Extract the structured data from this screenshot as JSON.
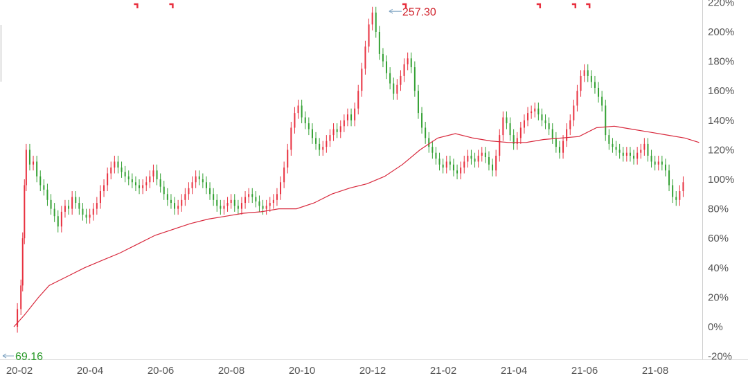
{
  "chart_data": {
    "type": "candlestick",
    "title": "",
    "xlabel": "",
    "ylabel": "",
    "y_axis_position": "right",
    "y_ticks": [
      "220%",
      "200%",
      "180%",
      "160%",
      "140%",
      "120%",
      "100%",
      "80%",
      "60%",
      "40%",
      "20%",
      "0%",
      "-20%"
    ],
    "y_tick_values": [
      220,
      200,
      180,
      160,
      140,
      120,
      100,
      80,
      60,
      40,
      20,
      0,
      -20
    ],
    "x_ticks": [
      "20-02",
      "20-04",
      "20-06",
      "20-08",
      "20-10",
      "20-12",
      "21-02",
      "21-04",
      "21-06",
      "21-08"
    ],
    "x_tick_months": [
      0,
      2,
      4,
      6,
      8,
      10,
      12,
      14,
      16,
      18
    ],
    "ylim": [
      -20,
      220
    ],
    "xlim_months": [
      0,
      19.4
    ],
    "colors": {
      "up": "#e8303f",
      "down": "#32a032",
      "ma_line": "#d8283c",
      "grid_text": "#555555",
      "max_label": "#d0202a",
      "min_label": "#2a9a2a"
    },
    "max_annotation": {
      "label": "257.30",
      "month": 10.9,
      "value": 213
    },
    "min_annotation": {
      "label": "69.16",
      "month": 0.0,
      "value": -16
    },
    "event_marker_months": [
      3.4,
      4.4,
      11.0,
      14.8,
      15.8,
      16.2
    ],
    "moving_average": {
      "month": [
        0,
        0.3,
        0.7,
        1,
        1.5,
        2,
        2.5,
        3,
        3.5,
        4,
        4.5,
        5,
        5.5,
        6,
        6.5,
        7,
        7.5,
        8,
        8.5,
        9,
        9.5,
        10,
        10.5,
        11,
        11.5,
        12,
        12.5,
        13,
        13.5,
        14,
        14.5,
        15,
        15.5,
        16,
        16.5,
        17,
        17.5,
        18,
        18.5,
        19,
        19.4
      ],
      "value": [
        0,
        8,
        20,
        28,
        34,
        40,
        45,
        50,
        56,
        62,
        66,
        70,
        73,
        75,
        77,
        78,
        80,
        80,
        84,
        90,
        94,
        97,
        102,
        110,
        120,
        128,
        131,
        128,
        126,
        125,
        125,
        127,
        128,
        129,
        135,
        136,
        134,
        132,
        130,
        128,
        125
      ]
    },
    "candles_close": [
      [
        0.0,
        0
      ],
      [
        0.1,
        12
      ],
      [
        0.2,
        28
      ],
      [
        0.25,
        60
      ],
      [
        0.3,
        96
      ],
      [
        0.35,
        120
      ],
      [
        0.45,
        110
      ],
      [
        0.55,
        112
      ],
      [
        0.65,
        102
      ],
      [
        0.75,
        96
      ],
      [
        0.85,
        93
      ],
      [
        0.95,
        86
      ],
      [
        1.05,
        80
      ],
      [
        1.15,
        75
      ],
      [
        1.25,
        68
      ],
      [
        1.35,
        78
      ],
      [
        1.45,
        82
      ],
      [
        1.55,
        80
      ],
      [
        1.65,
        88
      ],
      [
        1.75,
        84
      ],
      [
        1.85,
        80
      ],
      [
        1.95,
        76
      ],
      [
        2.05,
        74
      ],
      [
        2.15,
        76
      ],
      [
        2.25,
        80
      ],
      [
        2.35,
        84
      ],
      [
        2.45,
        92
      ],
      [
        2.55,
        96
      ],
      [
        2.65,
        104
      ],
      [
        2.75,
        108
      ],
      [
        2.85,
        112
      ],
      [
        2.95,
        108
      ],
      [
        3.05,
        105
      ],
      [
        3.15,
        102
      ],
      [
        3.25,
        100
      ],
      [
        3.35,
        98
      ],
      [
        3.45,
        96
      ],
      [
        3.55,
        94
      ],
      [
        3.65,
        96
      ],
      [
        3.75,
        98
      ],
      [
        3.85,
        102
      ],
      [
        3.95,
        106
      ],
      [
        4.05,
        100
      ],
      [
        4.15,
        95
      ],
      [
        4.25,
        90
      ],
      [
        4.35,
        86
      ],
      [
        4.45,
        84
      ],
      [
        4.55,
        80
      ],
      [
        4.65,
        82
      ],
      [
        4.75,
        86
      ],
      [
        4.85,
        90
      ],
      [
        4.95,
        94
      ],
      [
        5.05,
        98
      ],
      [
        5.15,
        102
      ],
      [
        5.25,
        100
      ],
      [
        5.35,
        98
      ],
      [
        5.45,
        94
      ],
      [
        5.55,
        90
      ],
      [
        5.65,
        86
      ],
      [
        5.75,
        82
      ],
      [
        5.85,
        80
      ],
      [
        5.95,
        82
      ],
      [
        6.05,
        84
      ],
      [
        6.15,
        86
      ],
      [
        6.25,
        82
      ],
      [
        6.35,
        80
      ],
      [
        6.45,
        84
      ],
      [
        6.55,
        88
      ],
      [
        6.65,
        90
      ],
      [
        6.75,
        88
      ],
      [
        6.85,
        85
      ],
      [
        6.95,
        82
      ],
      [
        7.05,
        80
      ],
      [
        7.15,
        82
      ],
      [
        7.25,
        84
      ],
      [
        7.35,
        86
      ],
      [
        7.45,
        90
      ],
      [
        7.55,
        98
      ],
      [
        7.65,
        108
      ],
      [
        7.75,
        120
      ],
      [
        7.85,
        135
      ],
      [
        7.95,
        145
      ],
      [
        8.05,
        150
      ],
      [
        8.15,
        142
      ],
      [
        8.25,
        138
      ],
      [
        8.35,
        134
      ],
      [
        8.45,
        128
      ],
      [
        8.55,
        124
      ],
      [
        8.65,
        120
      ],
      [
        8.75,
        122
      ],
      [
        8.85,
        126
      ],
      [
        8.95,
        130
      ],
      [
        9.05,
        134
      ],
      [
        9.15,
        132
      ],
      [
        9.25,
        136
      ],
      [
        9.35,
        140
      ],
      [
        9.45,
        144
      ],
      [
        9.55,
        140
      ],
      [
        9.65,
        148
      ],
      [
        9.75,
        160
      ],
      [
        9.85,
        175
      ],
      [
        9.95,
        190
      ],
      [
        10.05,
        205
      ],
      [
        10.15,
        213
      ],
      [
        10.25,
        200
      ],
      [
        10.35,
        185
      ],
      [
        10.45,
        180
      ],
      [
        10.55,
        172
      ],
      [
        10.65,
        165
      ],
      [
        10.75,
        158
      ],
      [
        10.85,
        164
      ],
      [
        10.95,
        170
      ],
      [
        11.05,
        178
      ],
      [
        11.15,
        182
      ],
      [
        11.25,
        176
      ],
      [
        11.35,
        160
      ],
      [
        11.45,
        145
      ],
      [
        11.55,
        135
      ],
      [
        11.65,
        128
      ],
      [
        11.75,
        122
      ],
      [
        11.85,
        118
      ],
      [
        11.95,
        114
      ],
      [
        12.05,
        110
      ],
      [
        12.15,
        108
      ],
      [
        12.25,
        112
      ],
      [
        12.35,
        110
      ],
      [
        12.45,
        106
      ],
      [
        12.55,
        104
      ],
      [
        12.65,
        108
      ],
      [
        12.75,
        112
      ],
      [
        12.85,
        116
      ],
      [
        12.95,
        114
      ],
      [
        13.05,
        112
      ],
      [
        13.15,
        116
      ],
      [
        13.25,
        118
      ],
      [
        13.35,
        115
      ],
      [
        13.45,
        110
      ],
      [
        13.55,
        106
      ],
      [
        13.65,
        116
      ],
      [
        13.75,
        130
      ],
      [
        13.85,
        142
      ],
      [
        13.95,
        138
      ],
      [
        14.05,
        130
      ],
      [
        14.15,
        124
      ],
      [
        14.25,
        128
      ],
      [
        14.35,
        135
      ],
      [
        14.45,
        140
      ],
      [
        14.55,
        145
      ],
      [
        14.65,
        146
      ],
      [
        14.75,
        148
      ],
      [
        14.85,
        144
      ],
      [
        14.95,
        140
      ],
      [
        15.05,
        138
      ],
      [
        15.15,
        134
      ],
      [
        15.25,
        128
      ],
      [
        15.35,
        122
      ],
      [
        15.45,
        118
      ],
      [
        15.55,
        126
      ],
      [
        15.65,
        134
      ],
      [
        15.75,
        140
      ],
      [
        15.85,
        150
      ],
      [
        15.95,
        160
      ],
      [
        16.05,
        170
      ],
      [
        16.15,
        174
      ],
      [
        16.25,
        170
      ],
      [
        16.35,
        166
      ],
      [
        16.45,
        162
      ],
      [
        16.55,
        156
      ],
      [
        16.65,
        150
      ],
      [
        16.75,
        130
      ],
      [
        16.85,
        124
      ],
      [
        16.95,
        122
      ],
      [
        17.05,
        120
      ],
      [
        17.15,
        118
      ],
      [
        17.25,
        116
      ],
      [
        17.35,
        118
      ],
      [
        17.45,
        116
      ],
      [
        17.55,
        114
      ],
      [
        17.65,
        118
      ],
      [
        17.75,
        120
      ],
      [
        17.85,
        124
      ],
      [
        17.95,
        116
      ],
      [
        18.05,
        112
      ],
      [
        18.15,
        110
      ],
      [
        18.25,
        112
      ],
      [
        18.35,
        110
      ],
      [
        18.45,
        106
      ],
      [
        18.55,
        96
      ],
      [
        18.65,
        88
      ],
      [
        18.75,
        86
      ],
      [
        18.85,
        92
      ],
      [
        18.95,
        98
      ]
    ]
  }
}
